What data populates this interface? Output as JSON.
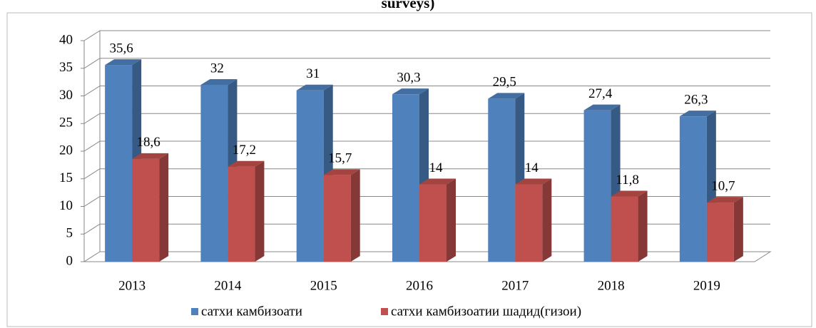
{
  "chart_data": {
    "type": "bar3d",
    "title": "surveys)",
    "categories": [
      "2013",
      "2014",
      "2015",
      "2016",
      "2017",
      "2018",
      "2019"
    ],
    "series": [
      {
        "name": "сатхи камбизоати",
        "color": "#4f81bd",
        "values": [
          35.6,
          32,
          31,
          30.3,
          29.5,
          27.4,
          26.3
        ],
        "value_labels": [
          "35,6",
          "32",
          "31",
          "30,3",
          "29,5",
          "27,4",
          "26,3"
        ]
      },
      {
        "name": "сатхи камбизоатии шадид(гизои)",
        "color": "#c0504d",
        "values": [
          18.6,
          17.2,
          15.7,
          14,
          14,
          11.8,
          10.7
        ],
        "value_labels": [
          "18,6",
          "17,2",
          "15,7",
          "14",
          "14",
          "11,8",
          "10,7"
        ]
      }
    ],
    "ylim": [
      0,
      40
    ],
    "yticks": [
      0,
      5,
      10,
      15,
      20,
      25,
      30,
      35,
      40
    ],
    "grid": true,
    "legend": "bottom"
  }
}
